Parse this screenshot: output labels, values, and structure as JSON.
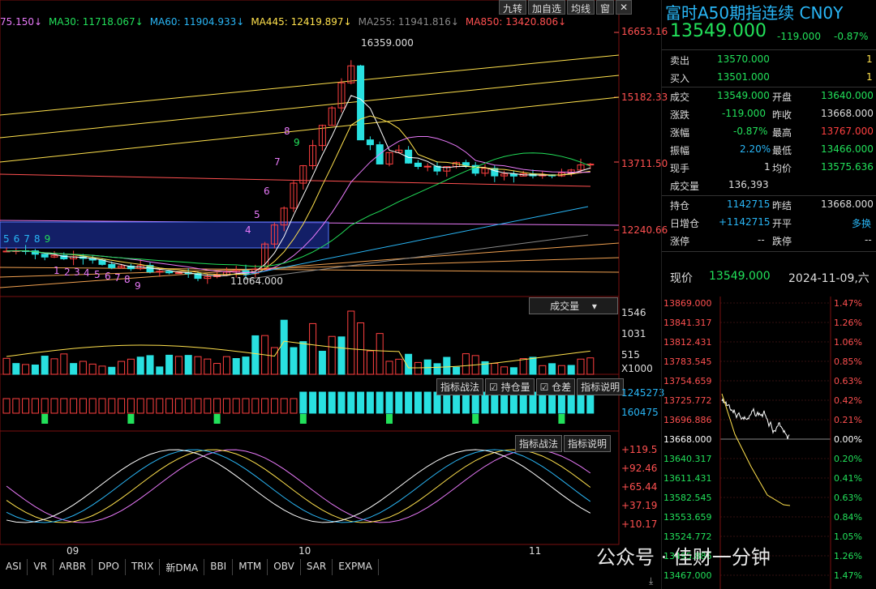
{
  "toolbar": {
    "buttons": [
      "九转",
      "加自选",
      "均线",
      "窗"
    ],
    "close": "✕"
  },
  "ma_line": [
    {
      "label": "75.150↓",
      "color": "#e879f9"
    },
    {
      "label": "MA30: 11718.067↓",
      "color": "#22e05a"
    },
    {
      "label": "MA60: 11904.933↓",
      "color": "#29b6f6"
    },
    {
      "label": "MA445: 12419.897↓",
      "color": "#ffe14d"
    },
    {
      "label": "MA255: 11941.816↓",
      "color": "#888888"
    },
    {
      "label": "MA850: 13420.806↓",
      "color": "#ff5050"
    }
  ],
  "price_axis": [
    "16653.16",
    "15182.33",
    "13711.50",
    "12240.66"
  ],
  "annotations": {
    "high": "16359.000",
    "low": "11064.000"
  },
  "nine_turn_left": [
    "5",
    "6",
    "7",
    "8",
    "9"
  ],
  "nine_turn_low": [
    "1",
    "2",
    "3",
    "4",
    "5",
    "6",
    "7",
    "8",
    "9"
  ],
  "nine_turn_up": [
    "4",
    "5",
    "6",
    "7",
    "8",
    "9"
  ],
  "volume_panel": {
    "title": "成交量",
    "axis": [
      "1546",
      "1031",
      "515",
      "X1000"
    ]
  },
  "oi_panel": {
    "buttons": [
      "指标战法",
      "☑ 持仓量",
      "☑ 仓差",
      "指标说明"
    ],
    "axis": [
      "1245273",
      "160475"
    ]
  },
  "osc_panel": {
    "buttons": [
      "指标战法",
      "指标说明"
    ],
    "axis": [
      "+119.5",
      "+92.46",
      "+65.44",
      "+37.19",
      "+10.17"
    ]
  },
  "date_labels": [
    "09",
    "10",
    "11"
  ],
  "indicator_tabs": [
    "ASI",
    "VR",
    "ARBR",
    "DPO",
    "TRIX",
    "新DMA",
    "BBI",
    "MTM",
    "OBV",
    "SAR",
    "EXPMA"
  ],
  "quote": {
    "title": "富时A50期指连续 CN0Y",
    "price": "13549.000",
    "change": "-119.000",
    "change_pct": "-0.87%",
    "sell": {
      "label": "卖出",
      "price": "13570.000",
      "qty": "1"
    },
    "buy": {
      "label": "买入",
      "price": "13501.000",
      "qty": "1"
    },
    "rows": [
      {
        "l1": "成交",
        "v1": "13549.000",
        "l2": "开盘",
        "v2": "13640.000"
      },
      {
        "l1": "涨跌",
        "v1": "-119.000",
        "l2": "昨收",
        "v2": "13668.000"
      },
      {
        "l1": "涨幅",
        "v1": "-0.87%",
        "l2": "最高",
        "v2": "13767.000"
      },
      {
        "l1": "振幅",
        "v1": "2.20%",
        "l2": "最低",
        "v2": "13466.000"
      },
      {
        "l1": "现手",
        "v1": "1",
        "l2": "均价",
        "v2": "13575.636"
      },
      {
        "l1": "成交量",
        "v1": "136,393",
        "l2": "",
        "v2": ""
      }
    ],
    "rows2": [
      {
        "l1": "持仓",
        "v1": "1142715",
        "l2": "昨结",
        "v2": "13668.000"
      },
      {
        "l1": "日增仓",
        "v1": "+1142715",
        "l2": "开平",
        "v2": "多换"
      },
      {
        "l1": "涨停",
        "v1": "--",
        "l2": "跌停",
        "v2": "--"
      }
    ],
    "now_label": "现价",
    "now_price": "13549.000",
    "date": "2024-11-09,六"
  },
  "intraday": {
    "price_axis": [
      "13869.000",
      "13841.317",
      "13812.431",
      "13783.545",
      "13754.659",
      "13725.772",
      "13696.886",
      "13668.000",
      "13640.317",
      "13611.431",
      "13582.545",
      "13553.659",
      "13524.772",
      "13495.886",
      "13467.000"
    ],
    "pct_axis": [
      "1.47%",
      "1.26%",
      "1.06%",
      "0.85%",
      "0.63%",
      "0.42%",
      "0.21%",
      "0.00%",
      "0.20%",
      "0.41%",
      "0.63%",
      "0.84%",
      "1.05%",
      "1.26%",
      "1.47%"
    ]
  },
  "watermark": "公众号 · 佳财一分钟"
}
